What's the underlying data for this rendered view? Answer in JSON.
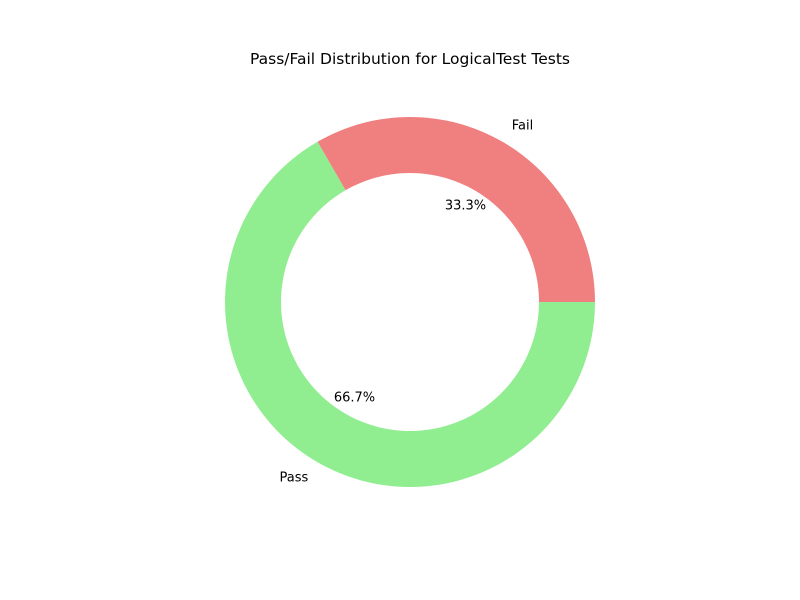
{
  "chart_data": {
    "type": "pie",
    "variant": "donut",
    "title": "Pass/Fail Distribution for LogicalTest Tests",
    "start_angle_deg": 0,
    "direction": "counterclockwise",
    "slices": [
      {
        "label": "Fail",
        "value": 1,
        "percent_label": "33.3%",
        "color": "#f08080"
      },
      {
        "label": "Pass",
        "value": 2,
        "percent_label": "66.7%",
        "color": "#90ee90"
      }
    ],
    "legend": "none"
  }
}
